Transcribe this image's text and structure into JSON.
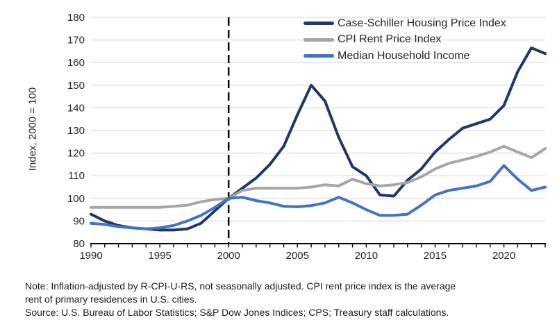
{
  "chart_data": {
    "type": "line",
    "title": "",
    "xlabel": "",
    "ylabel": "Index, 2000 = 100",
    "x": [
      1990,
      1991,
      1992,
      1993,
      1994,
      1995,
      1996,
      1997,
      1998,
      1999,
      2000,
      2001,
      2002,
      2003,
      2004,
      2005,
      2006,
      2007,
      2008,
      2009,
      2010,
      2011,
      2012,
      2013,
      2014,
      2015,
      2016,
      2017,
      2018,
      2019,
      2020,
      2021,
      2022,
      2023
    ],
    "series": [
      {
        "name": "Case-Schiller Housing Price Index",
        "color": "#1F3864",
        "values": [
          93,
          90,
          88,
          87,
          86.5,
          86,
          86,
          86.5,
          89,
          94.5,
          100,
          104.5,
          109,
          115,
          123,
          137,
          150,
          143,
          127,
          114,
          110,
          101.5,
          101,
          108,
          113,
          120.5,
          126,
          131,
          133,
          135,
          141,
          156,
          166.5,
          164
        ]
      },
      {
        "name": "CPI Rent Price Index",
        "color": "#A6A6A6",
        "values": [
          96,
          96,
          96,
          96,
          96,
          96,
          96.5,
          97,
          98.5,
          99.5,
          100,
          103.5,
          104.5,
          104.5,
          104.5,
          104.5,
          105,
          106,
          105.5,
          108.5,
          106.5,
          105.5,
          106,
          107,
          109.5,
          113,
          115.5,
          117,
          118.5,
          120.5,
          123,
          120.5,
          118,
          122
        ]
      },
      {
        "name": "Median Household Income",
        "color": "#4472C4",
        "values": [
          89,
          88.5,
          87.5,
          87,
          86.5,
          87,
          88,
          90,
          92.5,
          96,
          100,
          100.5,
          99,
          98,
          96.5,
          96.3,
          96.8,
          98,
          100.5,
          98,
          95,
          92.5,
          92.5,
          93,
          97,
          101.5,
          103.5,
          104.5,
          105.5,
          107.5,
          114.5,
          108.5,
          103.5,
          105
        ]
      }
    ],
    "xlim": [
      1990,
      2023
    ],
    "ylim": [
      80,
      180
    ],
    "yticks": [
      80,
      90,
      100,
      110,
      120,
      130,
      140,
      150,
      160,
      170,
      180
    ],
    "xticks": [
      1990,
      1995,
      2000,
      2005,
      2010,
      2015,
      2020
    ],
    "x_minor_tick_interval": 1,
    "grid": "horizontal",
    "gridline_color": "#D9D9D9",
    "axis_color": "#000000",
    "tick_label_color": "#262626",
    "reference_line": {
      "x": 2000,
      "style": "dashed",
      "color": "#000000"
    },
    "legend_position": "top-right"
  },
  "note": {
    "line1": "Note: Inflation-adjusted by R-CPI-U-RS, not seasonally adjusted. CPI rent price index is the average",
    "line2": "rent of primary residences in U.S. cities.",
    "line3": "Source: U.S. Bureau of Labor Statistics; S&P Dow Jones Indices; CPS; Treasury staff calculations."
  }
}
